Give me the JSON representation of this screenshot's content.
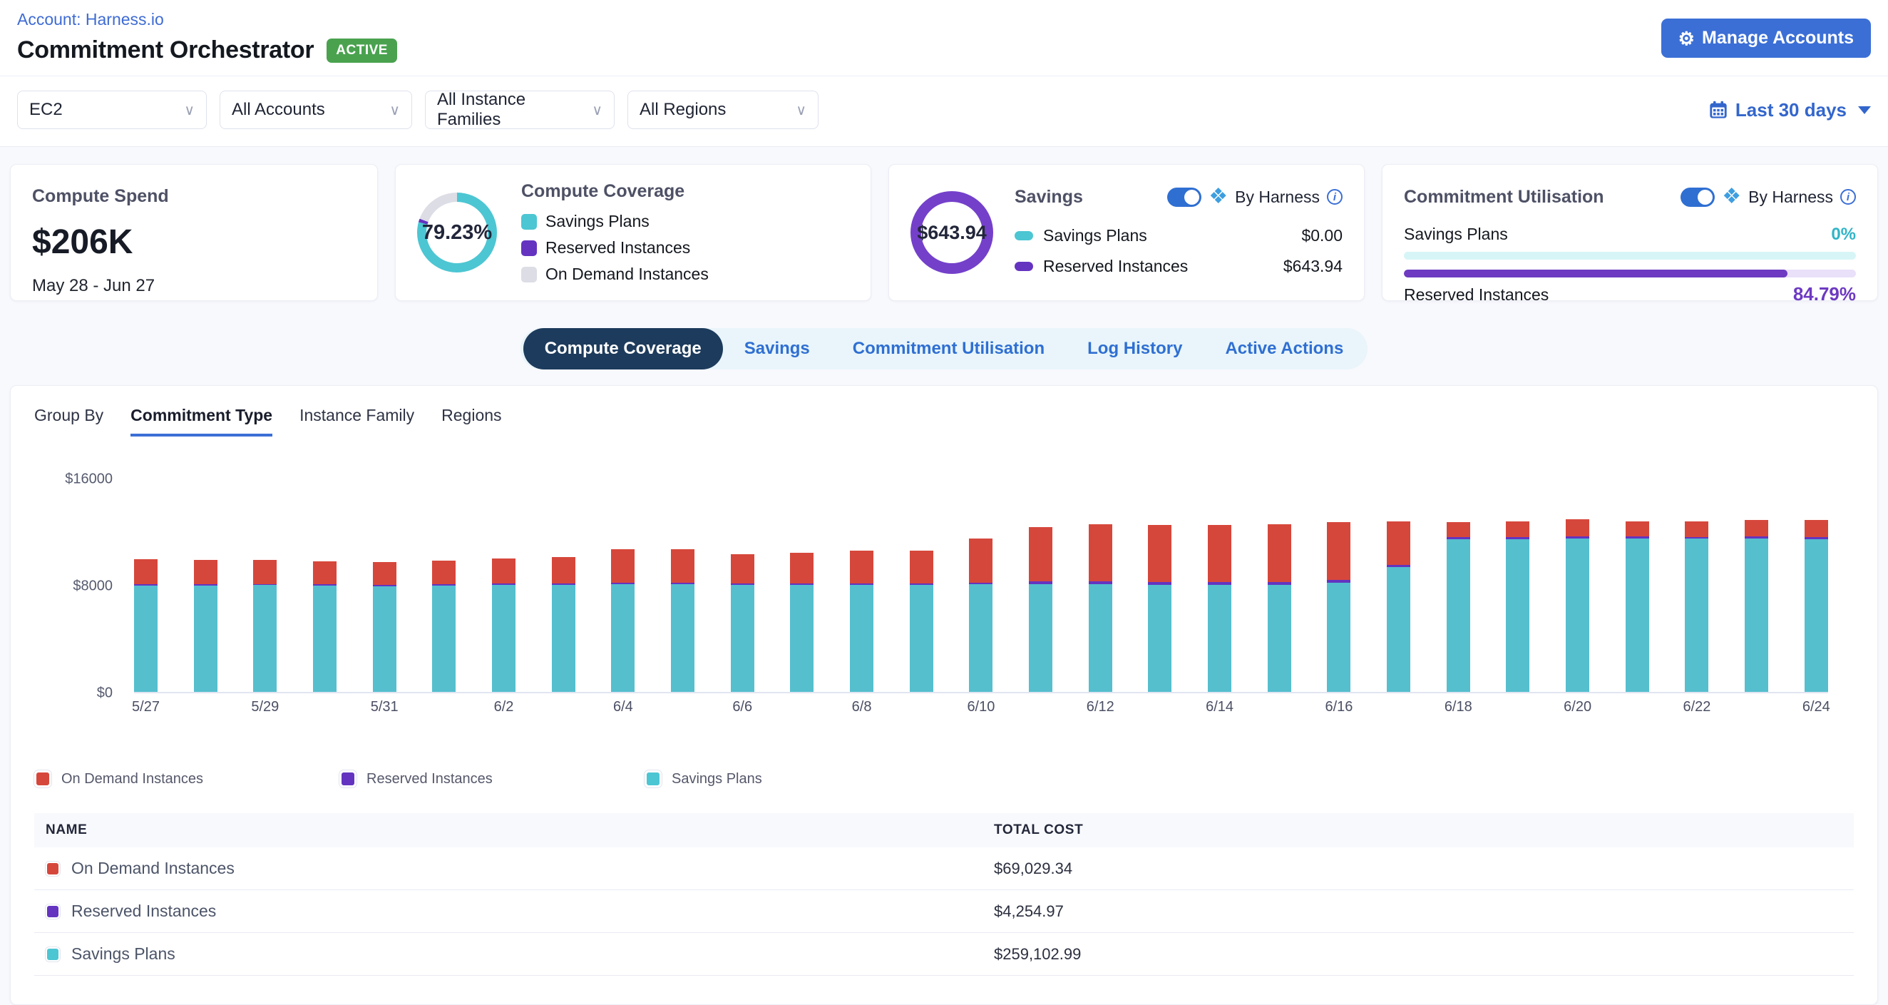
{
  "header": {
    "account_link": "Account: Harness.io",
    "title": "Commitment Orchestrator",
    "status_badge": "ACTIVE",
    "manage_accounts_label": "Manage Accounts"
  },
  "filters": {
    "service": "EC2",
    "accounts": "All Accounts",
    "instance_families": "All Instance Families",
    "regions": "All Regions",
    "date_range": "Last 30 days"
  },
  "cards": {
    "compute_spend": {
      "title": "Compute Spend",
      "value": "$206K",
      "period": "May 28 - Jun 27"
    },
    "compute_coverage": {
      "title": "Compute Coverage",
      "percent": "79.23%",
      "legend": [
        {
          "label": "Savings Plans",
          "color": "#4cc6d2"
        },
        {
          "label": "Reserved Instances",
          "color": "#6434c0"
        },
        {
          "label": "On Demand Instances",
          "color": "#dcdde5"
        }
      ]
    },
    "savings": {
      "title": "Savings",
      "value": "$643.94",
      "by_harness": "By Harness",
      "rows": [
        {
          "label": "Savings Plans",
          "value": "$0.00",
          "color": "#4cc6d2"
        },
        {
          "label": "Reserved Instances",
          "value": "$643.94",
          "color": "#6434c0"
        }
      ]
    },
    "commitment_utilisation": {
      "title": "Commitment Utilisation",
      "by_harness": "By Harness",
      "rows": [
        {
          "label": "Savings Plans",
          "value": "0%",
          "percent": 0,
          "color": "#4cc6d2"
        },
        {
          "label": "Reserved Instances",
          "value": "84.79%",
          "percent": 84.79,
          "color": "#6d3ac1"
        }
      ]
    }
  },
  "tabs": {
    "items": [
      "Compute Coverage",
      "Savings",
      "Commitment Utilisation",
      "Log History",
      "Active Actions"
    ],
    "active": "Compute Coverage"
  },
  "group_by": {
    "label": "Group By",
    "options": [
      "Commitment Type",
      "Instance Family",
      "Regions"
    ],
    "active": "Commitment Type"
  },
  "chart_data": {
    "type": "bar",
    "stacked": true,
    "x": [
      "5/27",
      "5/28",
      "5/29",
      "5/30",
      "5/31",
      "6/1",
      "6/2",
      "6/3",
      "6/4",
      "6/5",
      "6/6",
      "6/7",
      "6/8",
      "6/9",
      "6/10",
      "6/11",
      "6/12",
      "6/13",
      "6/14",
      "6/15",
      "6/16",
      "6/17",
      "6/18",
      "6/19",
      "6/20",
      "6/21",
      "6/22",
      "6/23",
      "6/24"
    ],
    "x_tick_every": 2,
    "series": [
      {
        "name": "Savings Plans",
        "color": "#55bfce",
        "values": [
          7950,
          7950,
          7980,
          7950,
          7920,
          7950,
          8000,
          8020,
          8030,
          8030,
          8000,
          8000,
          8010,
          8010,
          8050,
          8050,
          8050,
          8000,
          8000,
          8000,
          8160,
          9330,
          11410,
          11430,
          11450,
          11470,
          11450,
          11450,
          11430
        ]
      },
      {
        "name": "Reserved Instances",
        "color": "#6434c0",
        "values": [
          100,
          100,
          100,
          100,
          100,
          100,
          110,
          110,
          120,
          130,
          120,
          120,
          120,
          120,
          130,
          200,
          200,
          190,
          190,
          200,
          200,
          150,
          150,
          150,
          160,
          150,
          150,
          160,
          160
        ]
      },
      {
        "name": "On Demand Instances",
        "color": "#d6473b",
        "values": [
          1850,
          1830,
          1810,
          1730,
          1680,
          1790,
          1890,
          1930,
          2500,
          2490,
          2150,
          2260,
          2450,
          2450,
          3280,
          4070,
          4280,
          4290,
          4290,
          4330,
          4330,
          3270,
          1130,
          1170,
          1300,
          1130,
          1150,
          1240,
          1260
        ]
      }
    ],
    "title": "",
    "xlabel": "",
    "ylabel": "",
    "ylim": [
      0,
      16000
    ],
    "yticks": [
      0,
      8000,
      16000
    ],
    "ytick_labels": [
      "$0",
      "$8000",
      "$16000"
    ],
    "grid": false,
    "legend_position": "bottom"
  },
  "chart_legend": [
    {
      "label": "On Demand Instances",
      "color": "#d6473b"
    },
    {
      "label": "Reserved Instances",
      "color": "#6434c0"
    },
    {
      "label": "Savings Plans",
      "color": "#4cc6d2"
    }
  ],
  "table": {
    "columns": [
      "NAME",
      "TOTAL COST"
    ],
    "rows": [
      {
        "name": "On Demand Instances",
        "total_cost": "$69,029.34",
        "color": "#d6473b"
      },
      {
        "name": "Reserved Instances",
        "total_cost": "$4,254.97",
        "color": "#6434c0"
      },
      {
        "name": "Savings Plans",
        "total_cost": "$259,102.99",
        "color": "#4cc6d2"
      }
    ]
  },
  "colors": {
    "accent_blue": "#3b6fd6",
    "active_tab_navy": "#1d3b5c",
    "badge_green": "#4aa24f",
    "teal": "#4cc6d2",
    "purple": "#6434c0",
    "red": "#d6473b",
    "page_bg": "#f8f9fd"
  }
}
